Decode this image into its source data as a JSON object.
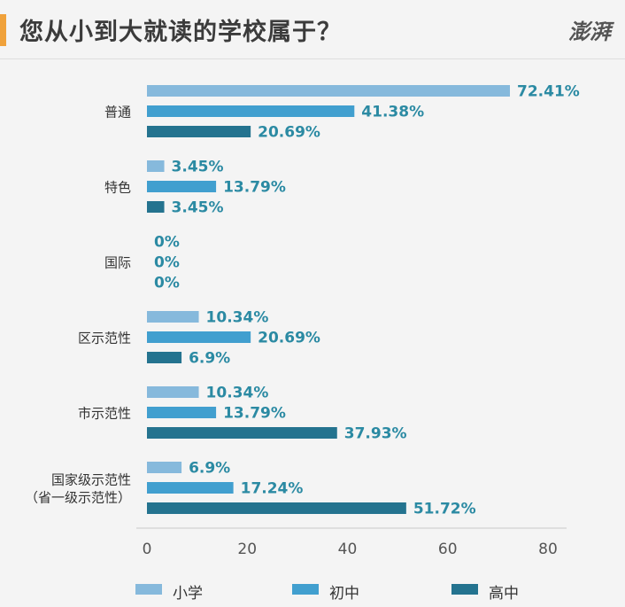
{
  "header": {
    "title": "您从小到大就读的学校属于？",
    "logo_text": "澎湃"
  },
  "colors": {
    "accent": "#f0a23b",
    "series": [
      "#86b9dc",
      "#419fcf",
      "#24738f"
    ],
    "value_label": "#2b8aa3"
  },
  "chart_data": {
    "type": "bar",
    "orientation": "horizontal",
    "title": "您从小到大就读的学校属于？",
    "categories": [
      "普通",
      "特色",
      "国际",
      "区示范性",
      "市示范性",
      "国家级示范性（省一级示范性）"
    ],
    "category_lines": [
      [
        "普通"
      ],
      [
        "特色"
      ],
      [
        "国际"
      ],
      [
        "区示范性"
      ],
      [
        "市示范性"
      ],
      [
        "国家级示范性",
        "（省一级示范性）"
      ]
    ],
    "series": [
      {
        "name": "小学",
        "values": [
          72.41,
          3.45,
          0,
          10.34,
          10.34,
          6.9
        ],
        "labels": [
          "72.41%",
          "3.45%",
          "0%",
          "10.34%",
          "10.34%",
          "6.9%"
        ]
      },
      {
        "name": "初中",
        "values": [
          41.38,
          13.79,
          0,
          20.69,
          13.79,
          17.24
        ],
        "labels": [
          "41.38%",
          "13.79%",
          "0%",
          "20.69%",
          "13.79%",
          "17.24%"
        ]
      },
      {
        "name": "高中",
        "values": [
          20.69,
          3.45,
          0,
          6.9,
          37.93,
          51.72
        ],
        "labels": [
          "20.69%",
          "3.45%",
          "0%",
          "6.9%",
          "37.93%",
          "51.72%"
        ]
      }
    ],
    "xlim": [
      0,
      80
    ],
    "xticks": [
      "0",
      "20",
      "40",
      "60",
      "80"
    ],
    "legend_position": "bottom",
    "grid": false
  }
}
